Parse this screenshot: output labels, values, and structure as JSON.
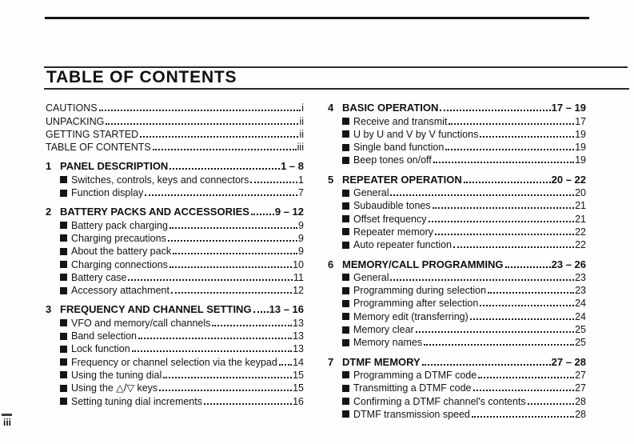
{
  "page": {
    "title": "TABLE OF CONTENTS",
    "page_number": "iii"
  },
  "colors": {
    "ink": "#141414",
    "paper": "#ffffff"
  },
  "toc": {
    "left": [
      {
        "type": "front",
        "label": "CAUTIONS",
        "page": "i"
      },
      {
        "type": "front",
        "label": "UNPACKING",
        "page": "ii"
      },
      {
        "type": "front",
        "label": "GETTING STARTED",
        "page": "ii"
      },
      {
        "type": "front",
        "label": "TABLE OF CONTENTS",
        "page": "iii"
      },
      {
        "type": "chapter",
        "number": "1",
        "label": "PANEL DESCRIPTION",
        "pages": "1 – 8",
        "items": [
          {
            "label": "Switches, controls, keys and connectors",
            "page": "1"
          },
          {
            "label": "Function display",
            "page": "7"
          }
        ]
      },
      {
        "type": "chapter",
        "number": "2",
        "label": "BATTERY PACKS AND ACCESSORIES",
        "pages": "9 – 12",
        "items": [
          {
            "label": "Battery pack charging",
            "page": "9"
          },
          {
            "label": "Charging precautions",
            "page": "9"
          },
          {
            "label": "About the battery pack",
            "page": "9"
          },
          {
            "label": "Charging connections",
            "page": "10"
          },
          {
            "label": "Battery case",
            "page": "11"
          },
          {
            "label": "Accessory attachment",
            "page": "12"
          }
        ]
      },
      {
        "type": "chapter",
        "number": "3",
        "label": "FREQUENCY AND CHANNEL SETTING",
        "pages": "13 – 16",
        "items": [
          {
            "label": "VFO and memory/call channels",
            "page": "13"
          },
          {
            "label": "Band selection",
            "page": "13"
          },
          {
            "label": "Lock function",
            "page": "13"
          },
          {
            "label": "Frequency or channel selection via the keypad",
            "page": "14"
          },
          {
            "label": "Using the tuning dial",
            "page": "15"
          },
          {
            "label": "Using the △/▽ keys",
            "page": "15"
          },
          {
            "label": "Setting tuning dial increments",
            "page": "16"
          }
        ]
      }
    ],
    "right": [
      {
        "type": "chapter",
        "number": "4",
        "label": "BASIC OPERATION",
        "pages": "17 – 19",
        "items": [
          {
            "label": "Receive and transmit",
            "page": "17"
          },
          {
            "label": "U by U and V by V functions",
            "page": "19"
          },
          {
            "label": "Single band function",
            "page": "19"
          },
          {
            "label": "Beep tones on/off",
            "page": "19"
          }
        ]
      },
      {
        "type": "chapter",
        "number": "5",
        "label": "REPEATER OPERATION",
        "pages": "20 – 22",
        "items": [
          {
            "label": "General",
            "page": "20"
          },
          {
            "label": "Subaudible tones",
            "page": "21"
          },
          {
            "label": "Offset frequency",
            "page": "21"
          },
          {
            "label": "Repeater memory",
            "page": "22"
          },
          {
            "label": "Auto repeater function",
            "page": "22"
          }
        ]
      },
      {
        "type": "chapter",
        "number": "6",
        "label": "MEMORY/CALL PROGRAMMING",
        "pages": "23 – 26",
        "items": [
          {
            "label": "General",
            "page": "23"
          },
          {
            "label": "Programming during selection",
            "page": "23"
          },
          {
            "label": "Programming after selection",
            "page": "24"
          },
          {
            "label": "Memory edit (transferring)",
            "page": "24"
          },
          {
            "label": "Memory clear",
            "page": "25"
          },
          {
            "label": "Memory names",
            "page": "25"
          }
        ]
      },
      {
        "type": "chapter",
        "number": "7",
        "label": "DTMF MEMORY",
        "pages": "27 – 28",
        "items": [
          {
            "label": "Programming a DTMF code",
            "page": "27"
          },
          {
            "label": "Transmitting a DTMF code",
            "page": "27"
          },
          {
            "label": "Confirming a DTMF channel's contents",
            "page": "28"
          },
          {
            "label": "DTMF transmission speed",
            "page": "28"
          }
        ]
      }
    ]
  }
}
